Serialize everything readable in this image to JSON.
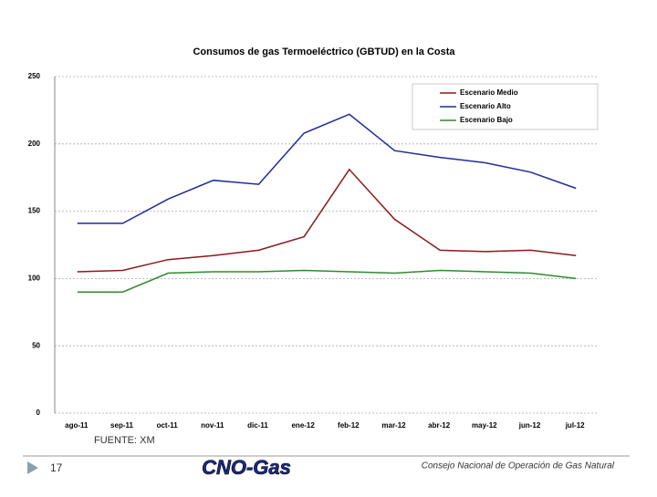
{
  "chart_data": {
    "type": "line",
    "title": "Consumos de gas Termoeléctrico (GBTUD) en la Costa",
    "categories": [
      "ago-11",
      "sep-11",
      "oct-11",
      "nov-11",
      "dic-11",
      "ene-12",
      "feb-12",
      "mar-12",
      "abr-12",
      "may-12",
      "jun-12",
      "jul-12"
    ],
    "series": [
      {
        "name": "Escenario Medio",
        "color": "#8b1a1a",
        "values": [
          105,
          106,
          114,
          117,
          121,
          131,
          181,
          144,
          121,
          120,
          121,
          117
        ]
      },
      {
        "name": "Escenario Alto",
        "color": "#1f2a9c",
        "values": [
          141,
          141,
          159,
          173,
          170,
          208,
          222,
          195,
          190,
          186,
          179,
          167
        ]
      },
      {
        "name": "Escenario Bajo",
        "color": "#2e8b2e",
        "values": [
          90,
          90,
          104,
          105,
          105,
          106,
          105,
          104,
          106,
          105,
          104,
          100
        ]
      }
    ],
    "ylim": [
      0,
      250
    ],
    "yticks": [
      0,
      50,
      100,
      150,
      200,
      250
    ],
    "grid": true,
    "legend": "top-right"
  },
  "source": "FUENTE: XM",
  "slide_number": "17",
  "logo": "CNO-Gas",
  "footer": "Consejo Nacional de Operación de Gas Natural"
}
